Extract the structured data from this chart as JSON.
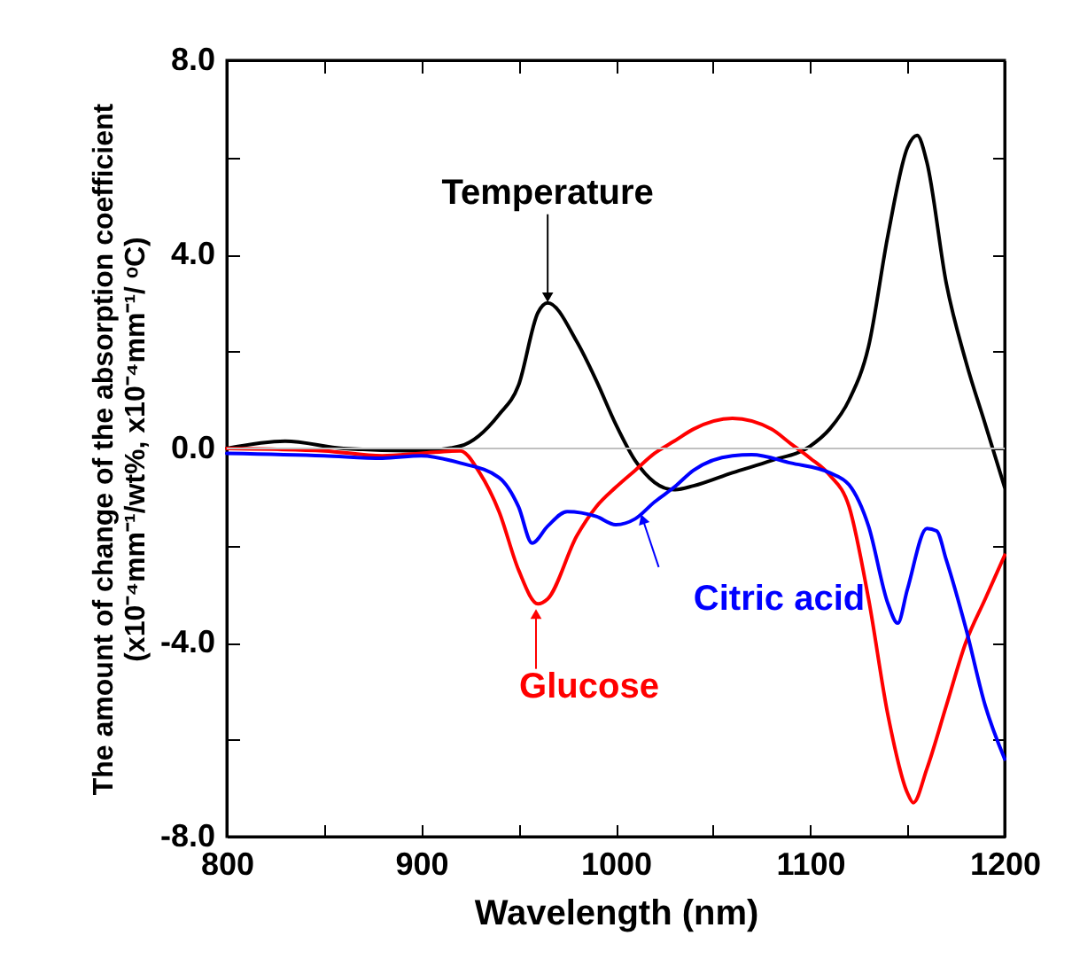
{
  "chart_data": {
    "type": "line",
    "xlabel": "Wavelength (nm)",
    "ylabel": "The amount of change of the absorption coefficient\n(x10⁻⁴mm⁻¹/wt%, x10⁻⁴mm⁻¹/ ᵒC)",
    "xlim": [
      800,
      1200
    ],
    "xticks": [
      800,
      {
        "value": 850,
        "label": null
      },
      900,
      {
        "value": 950,
        "label": null
      },
      1000,
      {
        "value": 1050,
        "label": null
      },
      1100,
      {
        "value": 1150,
        "label": null
      },
      1200
    ],
    "ylim": [
      -8,
      8
    ],
    "yticks": [
      {
        "value": -8,
        "label": "-8.0"
      },
      {
        "value": -6,
        "label": null
      },
      {
        "value": -4,
        "label": "-4.0"
      },
      {
        "value": -2,
        "label": null
      },
      {
        "value": 0,
        "label": "0.0"
      },
      {
        "value": 2,
        "label": null
      },
      {
        "value": 4,
        "label": "4.0"
      },
      {
        "value": 6,
        "label": null
      },
      {
        "value": 8,
        "label": "8.0"
      }
    ],
    "grid": false,
    "ref_lines": [
      {
        "axis": "y",
        "value": 0,
        "color": "#c0c0c0"
      }
    ],
    "series": [
      {
        "color": "#000000",
        "x": [
          800,
          830,
          860,
          900,
          920,
          940,
          950,
          960,
          965,
          980,
          990,
          1000,
          1010,
          1020,
          1030,
          1040,
          1060,
          1080,
          1100,
          1110,
          1120,
          1130,
          1140,
          1150,
          1155,
          1160,
          1170,
          1180,
          1190,
          1200
        ],
        "values": [
          0,
          0.15,
          0,
          -0.05,
          0.05,
          0.7,
          1.3,
          2.8,
          3.0,
          2.2,
          1.4,
          0.5,
          -0.25,
          -0.7,
          -0.85,
          -0.77,
          -0.5,
          -0.25,
          0.05,
          0.4,
          1.0,
          2.1,
          4.4,
          6.2,
          6.45,
          5.9,
          3.4,
          1.8,
          0.5,
          -0.8
        ]
      },
      {
        "color": "#ff0000",
        "x": [
          800,
          850,
          880,
          900,
          920,
          930,
          940,
          950,
          960,
          965,
          980,
          990,
          1000,
          1010,
          1020,
          1030,
          1040,
          1060,
          1080,
          1090,
          1100,
          1110,
          1120,
          1130,
          1140,
          1150,
          1153,
          1160,
          1170,
          1180,
          1190,
          1200
        ],
        "values": [
          0,
          -0.05,
          -0.15,
          -0.1,
          -0.05,
          -0.5,
          -1.3,
          -2.5,
          -3.2,
          -3.1,
          -1.8,
          -1.2,
          -0.8,
          -0.45,
          -0.1,
          0.15,
          0.4,
          0.62,
          0.4,
          0.1,
          -0.2,
          -0.55,
          -1.2,
          -3.1,
          -5.5,
          -7.1,
          -7.3,
          -6.6,
          -5.3,
          -4.0,
          -3.1,
          -2.2
        ]
      },
      {
        "color": "#0000ff",
        "x": [
          800,
          850,
          880,
          900,
          920,
          940,
          950,
          957,
          965,
          975,
          990,
          1000,
          1010,
          1020,
          1030,
          1040,
          1060,
          1070,
          1090,
          1110,
          1120,
          1130,
          1140,
          1145,
          1150,
          1160,
          1165,
          1170,
          1180,
          1190,
          1200
        ],
        "values": [
          -0.1,
          -0.15,
          -0.2,
          -0.15,
          -0.3,
          -0.6,
          -1.2,
          -1.95,
          -1.6,
          -1.3,
          -1.4,
          -1.57,
          -1.45,
          -1.1,
          -0.8,
          -0.45,
          -0.15,
          -0.13,
          -0.3,
          -0.5,
          -0.75,
          -1.6,
          -3.2,
          -3.6,
          -2.9,
          -1.65,
          -1.7,
          -2.3,
          -3.7,
          -5.3,
          -6.4
        ]
      }
    ],
    "annotations": [
      {
        "text": "Temperature",
        "x": 965,
        "y": 3.0
      },
      {
        "text": "Glucose",
        "x": 959,
        "y": -3.3
      },
      {
        "text": "Citric acid",
        "x": 1013,
        "y": -1.35
      }
    ]
  }
}
